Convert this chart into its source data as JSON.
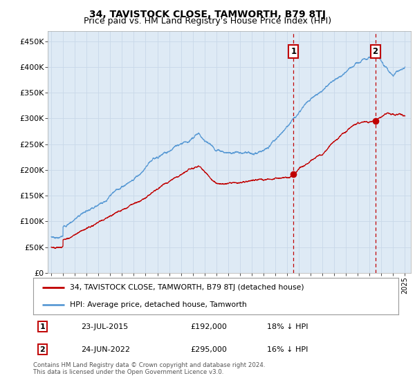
{
  "title": "34, TAVISTOCK CLOSE, TAMWORTH, B79 8TJ",
  "subtitle": "Price paid vs. HM Land Registry's House Price Index (HPI)",
  "ylabel_ticks": [
    "£0",
    "£50K",
    "£100K",
    "£150K",
    "£200K",
    "£250K",
    "£300K",
    "£350K",
    "£400K",
    "£450K"
  ],
  "ytick_vals": [
    0,
    50000,
    100000,
    150000,
    200000,
    250000,
    300000,
    350000,
    400000,
    450000
  ],
  "ylim": [
    0,
    470000
  ],
  "xlim_start": 1994.7,
  "xlim_end": 2025.5,
  "sale1_date": 2015.55,
  "sale1_price": 192000,
  "sale1_label": "1",
  "sale2_date": 2022.48,
  "sale2_price": 295000,
  "sale2_label": "2",
  "hpi_color": "#5b9bd5",
  "price_color": "#c00000",
  "vline_color": "#c00000",
  "marker_color": "#c00000",
  "annotation_box_color": "#c00000",
  "grid_color": "#c8d8e8",
  "bg_color": "#deeaf5",
  "legend_label_red": "34, TAVISTOCK CLOSE, TAMWORTH, B79 8TJ (detached house)",
  "legend_label_blue": "HPI: Average price, detached house, Tamworth",
  "table_row1": [
    "1",
    "23-JUL-2015",
    "£192,000",
    "18% ↓ HPI"
  ],
  "table_row2": [
    "2",
    "24-JUN-2022",
    "£295,000",
    "16% ↓ HPI"
  ],
  "footnote": "Contains HM Land Registry data © Crown copyright and database right 2024.\nThis data is licensed under the Open Government Licence v3.0.",
  "title_fontsize": 10,
  "subtitle_fontsize": 9
}
